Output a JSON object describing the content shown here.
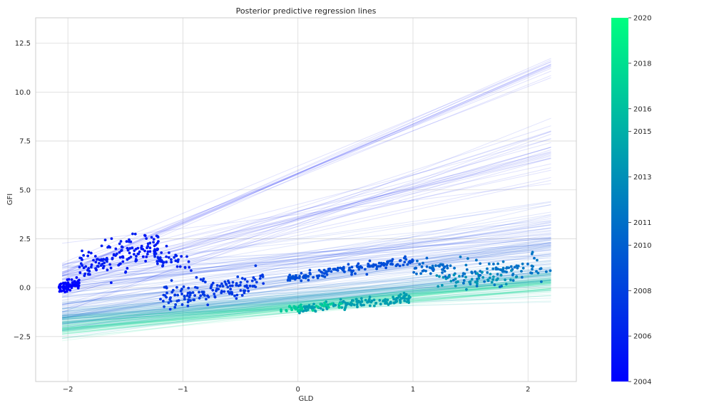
{
  "chart_data": {
    "type": "scatter",
    "title": "Posterior predictive regression lines",
    "xlabel": "GLD",
    "ylabel": "GFI",
    "xlim": [
      -2.28,
      2.42
    ],
    "ylim": [
      -4.8,
      13.8
    ],
    "xticks": [
      -2,
      -1,
      0,
      1,
      2
    ],
    "xtick_labels": [
      "−2",
      "−1",
      "0",
      "1",
      "2"
    ],
    "yticks": [
      -2.5,
      0.0,
      2.5,
      5.0,
      7.5,
      10.0,
      12.5
    ],
    "ytick_labels": [
      "−2.5",
      "0.0",
      "2.5",
      "5.0",
      "7.5",
      "10.0",
      "12.5"
    ],
    "grid": true,
    "colormap": "winter",
    "colors": {
      "cmap_start": "#0000ff",
      "cmap_end": "#00ff80",
      "grid": "#d9d9d9",
      "axes_edge": "#cccccc"
    },
    "colorbar": {
      "range": [
        2004,
        2020
      ],
      "ticks": [
        2004,
        2006,
        2008,
        2010,
        2011,
        2013,
        2015,
        2016,
        2018,
        2020
      ],
      "tick_labels": [
        "2004",
        "2006",
        "2008",
        "2010",
        "2011",
        "2013",
        "2015",
        "2016",
        "2018",
        "2020"
      ]
    },
    "regression_line_x_range": [
      -2.05,
      2.2
    ],
    "regression_line_bundles": [
      {
        "t": 0.05,
        "intercept": 5.8,
        "slope": 2.5,
        "intercept_sd": 0.15,
        "slope_sd": 0.12,
        "count": 14
      },
      {
        "t": 0.1,
        "intercept": 3.6,
        "slope": 1.6,
        "intercept_sd": 0.35,
        "slope_sd": 0.35,
        "count": 28
      },
      {
        "t": 0.2,
        "intercept": 1.4,
        "slope": 0.7,
        "intercept_sd": 0.45,
        "slope_sd": 0.3,
        "count": 40
      },
      {
        "t": 0.3,
        "intercept": 0.4,
        "slope": 0.85,
        "intercept_sd": 0.25,
        "slope_sd": 0.2,
        "count": 36
      },
      {
        "t": 0.45,
        "intercept": -0.4,
        "slope": 0.55,
        "intercept_sd": 0.25,
        "slope_sd": 0.15,
        "count": 36
      },
      {
        "t": 0.6,
        "intercept": -0.7,
        "slope": 0.5,
        "intercept_sd": 0.2,
        "slope_sd": 0.12,
        "count": 34
      },
      {
        "t": 0.75,
        "intercept": -0.95,
        "slope": 0.5,
        "intercept_sd": 0.18,
        "slope_sd": 0.1,
        "count": 34
      },
      {
        "t": 0.9,
        "intercept": -1.0,
        "slope": 0.55,
        "intercept_sd": 0.15,
        "slope_sd": 0.1,
        "count": 30
      }
    ],
    "point_clusters": [
      {
        "t": 0.02,
        "x": [
          -2.08,
          -1.9
        ],
        "slope": 1.1,
        "intercept": 2.3,
        "spread": 0.12,
        "count": 90
      },
      {
        "t": 0.1,
        "x": [
          -1.9,
          -1.2
        ],
        "slope": 1.7,
        "intercept": 4.3,
        "spread": 0.38,
        "count": 150
      },
      {
        "t": 0.13,
        "x": [
          -1.25,
          -0.9
        ],
        "slope": -0.3,
        "intercept": 1.1,
        "spread": 0.25,
        "count": 40
      },
      {
        "t": 0.22,
        "x": [
          -1.2,
          -0.3
        ],
        "slope": 1.1,
        "intercept": 0.7,
        "spread": 0.32,
        "count": 140
      },
      {
        "t": 0.3,
        "x": [
          -0.1,
          1.0
        ],
        "slope": 0.85,
        "intercept": 0.55,
        "spread": 0.12,
        "count": 140
      },
      {
        "t": 0.4,
        "x": [
          1.0,
          1.3
        ],
        "slope": 0.0,
        "intercept": 1.0,
        "spread": 0.18,
        "count": 40
      },
      {
        "t": 0.45,
        "x": [
          1.3,
          2.2
        ],
        "slope": 0.45,
        "intercept": 0.1,
        "spread": 0.35,
        "count": 90
      },
      {
        "t": 0.58,
        "x": [
          1.2,
          1.9
        ],
        "slope": 0.3,
        "intercept": 0.0,
        "spread": 0.2,
        "count": 40
      },
      {
        "t": 0.62,
        "x": [
          0.0,
          1.0
        ],
        "slope": 0.55,
        "intercept": -1.1,
        "spread": 0.12,
        "count": 160
      },
      {
        "t": 0.8,
        "x": [
          -0.2,
          0.4
        ],
        "slope": 0.5,
        "intercept": -1.05,
        "spread": 0.08,
        "count": 40
      }
    ]
  }
}
